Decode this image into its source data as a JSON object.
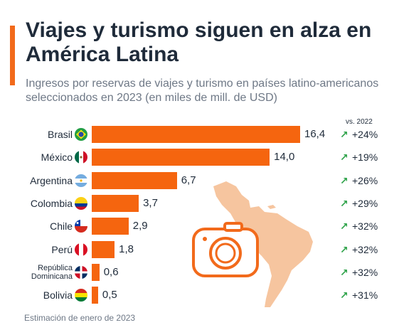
{
  "header": {
    "title": "Viajes y turismo siguen en alza en América Latina",
    "subtitle": "Ingresos por reservas de viajes y turismo en países latino-americanos seleccionados en 2023 (en miles de mill. de USD)",
    "vs_label": "vs. 2022"
  },
  "footer": {
    "note": "Estimación de enero de 2023"
  },
  "colors": {
    "accent": "#f26a1b",
    "bar": "#f5650f",
    "up_arrow": "#2fa34a",
    "map": "#f6c59f"
  },
  "icons": {
    "trend": "arrow-up-right-icon",
    "map": "south-america-map-icon",
    "camera": "camera-icon"
  },
  "chart_data": {
    "type": "bar",
    "orientation": "horizontal",
    "categories": [
      "Brasil",
      "México",
      "Argentina",
      "Colombia",
      "Chile",
      "Perú",
      "República Dominicana",
      "Bolivia"
    ],
    "category_lines": [
      [
        "Brasil"
      ],
      [
        "México"
      ],
      [
        "Argentina"
      ],
      [
        "Colombia"
      ],
      [
        "Chile"
      ],
      [
        "Perú"
      ],
      [
        "República",
        "Dominicana"
      ],
      [
        "Bolivia"
      ]
    ],
    "values": [
      16.4,
      14.0,
      6.7,
      3.7,
      2.9,
      1.8,
      0.6,
      0.5
    ],
    "value_labels": [
      "16,4",
      "14,0",
      "6,7",
      "3,7",
      "2,9",
      "1,8",
      "0,6",
      "0,5"
    ],
    "change_vs_2022": [
      "+24%",
      "+19%",
      "+26%",
      "+29%",
      "+32%",
      "+32%",
      "+32%",
      "+31%"
    ],
    "flags": [
      "brazil-flag-icon",
      "mexico-flag-icon",
      "argentina-flag-icon",
      "colombia-flag-icon",
      "chile-flag-icon",
      "peru-flag-icon",
      "dominican-republic-flag-icon",
      "bolivia-flag-icon"
    ],
    "xlim": [
      0,
      16.4
    ],
    "grid": false,
    "legend": "none"
  }
}
